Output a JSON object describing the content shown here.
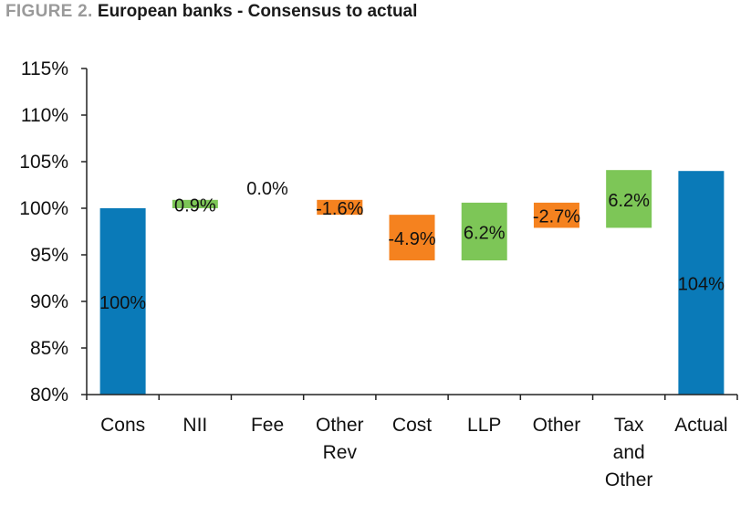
{
  "title": {
    "label": "FIGURE 2.",
    "text": "European banks - Consensus to actual"
  },
  "colors": {
    "total": "#0a7ab8",
    "increase": "#7dc657",
    "decrease": "#f5821f",
    "axis": "#222222"
  },
  "chart_data": {
    "type": "bar",
    "subtype": "waterfall",
    "categories": [
      [
        "Cons"
      ],
      [
        "NII"
      ],
      [
        "Fee"
      ],
      [
        "Other",
        "Rev"
      ],
      [
        "Cost"
      ],
      [
        "LLP"
      ],
      [
        "Other"
      ],
      [
        "Tax",
        "and",
        "Other"
      ],
      [
        "Actual"
      ]
    ],
    "values": [
      100,
      0.9,
      0.0,
      -1.6,
      -4.9,
      6.2,
      -2.7,
      6.2,
      104
    ],
    "bar_kind": [
      "total",
      "delta",
      "delta",
      "delta",
      "delta",
      "delta",
      "delta",
      "delta",
      "total"
    ],
    "data_labels": [
      "100%",
      "0.9%",
      "0.0%",
      "-1.6%",
      "-4.9%",
      "6.2%",
      "-2.7%",
      "6.2%",
      "104%"
    ],
    "ylim": [
      80,
      115
    ],
    "yticks": [
      80,
      85,
      90,
      95,
      100,
      105,
      110,
      115
    ],
    "ytick_labels": [
      "80%",
      "85%",
      "90%",
      "95%",
      "100%",
      "105%",
      "110%",
      "115%"
    ],
    "grid": false,
    "legend": "none"
  }
}
